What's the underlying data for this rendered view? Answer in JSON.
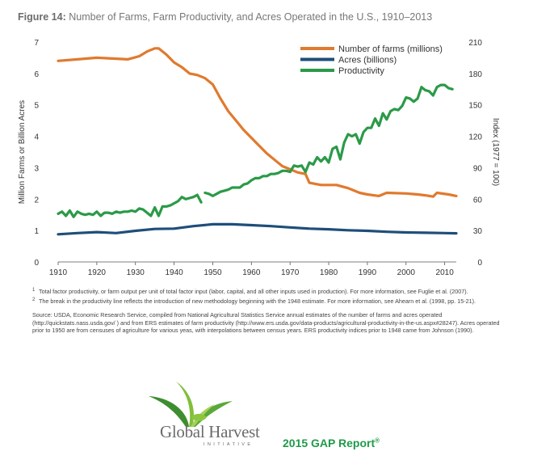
{
  "figure": {
    "label": "Figure 14:",
    "title": "Number of Farms, Farm Productivity, and Acres Operated in the U.S., 1910–2013"
  },
  "chart_data": {
    "type": "line",
    "xlim": [
      1910,
      2013
    ],
    "x_ticks": [
      1910,
      1920,
      1930,
      1940,
      1950,
      1960,
      1970,
      1980,
      1990,
      2000,
      2010
    ],
    "y_left": {
      "label": "Million Farms or Billion Acres",
      "ylim": [
        0,
        7
      ],
      "ticks": [
        0,
        1,
        2,
        3,
        4,
        5,
        6,
        7
      ]
    },
    "y_right": {
      "label": "Index (1977 = 100)",
      "ylim": [
        0,
        210
      ],
      "ticks": [
        0,
        30,
        60,
        90,
        120,
        150,
        180,
        210
      ]
    },
    "legend_position": "top-right",
    "grid": false,
    "series": [
      {
        "name": "Number of farms (millions)",
        "color": "#e07a2e",
        "axis": "left",
        "points": [
          [
            1910,
            6.4
          ],
          [
            1915,
            6.45
          ],
          [
            1920,
            6.5
          ],
          [
            1925,
            6.47
          ],
          [
            1928,
            6.45
          ],
          [
            1931,
            6.55
          ],
          [
            1933,
            6.7
          ],
          [
            1935,
            6.8
          ],
          [
            1936,
            6.8
          ],
          [
            1938,
            6.6
          ],
          [
            1940,
            6.35
          ],
          [
            1942,
            6.2
          ],
          [
            1944,
            6.0
          ],
          [
            1946,
            5.95
          ],
          [
            1948,
            5.85
          ],
          [
            1950,
            5.65
          ],
          [
            1952,
            5.2
          ],
          [
            1954,
            4.8
          ],
          [
            1956,
            4.5
          ],
          [
            1958,
            4.2
          ],
          [
            1960,
            3.95
          ],
          [
            1962,
            3.7
          ],
          [
            1964,
            3.45
          ],
          [
            1966,
            3.25
          ],
          [
            1968,
            3.05
          ],
          [
            1970,
            2.95
          ],
          [
            1972,
            2.85
          ],
          [
            1974,
            2.8
          ],
          [
            1975,
            2.52
          ],
          [
            1978,
            2.45
          ],
          [
            1982,
            2.45
          ],
          [
            1985,
            2.35
          ],
          [
            1988,
            2.2
          ],
          [
            1990,
            2.15
          ],
          [
            1993,
            2.1
          ],
          [
            1995,
            2.2
          ],
          [
            2000,
            2.18
          ],
          [
            2003,
            2.15
          ],
          [
            2005,
            2.12
          ],
          [
            2007,
            2.08
          ],
          [
            2008,
            2.2
          ],
          [
            2011,
            2.15
          ],
          [
            2013,
            2.1
          ]
        ]
      },
      {
        "name": "Acres (billions)",
        "color": "#1f4e79",
        "axis": "left",
        "points": [
          [
            1910,
            0.88
          ],
          [
            1915,
            0.92
          ],
          [
            1920,
            0.95
          ],
          [
            1925,
            0.92
          ],
          [
            1930,
            0.99
          ],
          [
            1935,
            1.05
          ],
          [
            1940,
            1.06
          ],
          [
            1945,
            1.14
          ],
          [
            1950,
            1.2
          ],
          [
            1955,
            1.2
          ],
          [
            1960,
            1.17
          ],
          [
            1965,
            1.14
          ],
          [
            1970,
            1.1
          ],
          [
            1975,
            1.06
          ],
          [
            1980,
            1.04
          ],
          [
            1985,
            1.01
          ],
          [
            1990,
            0.99
          ],
          [
            1995,
            0.96
          ],
          [
            2000,
            0.94
          ],
          [
            2005,
            0.93
          ],
          [
            2010,
            0.92
          ],
          [
            2013,
            0.91
          ]
        ]
      },
      {
        "name": "Productivity",
        "color": "#2b9a48",
        "axis": "right",
        "segments": [
          [
            [
              1910,
              46
            ],
            [
              1911,
              48
            ],
            [
              1912,
              44
            ],
            [
              1913,
              49
            ],
            [
              1914,
              43
            ],
            [
              1915,
              48
            ],
            [
              1916,
              46
            ],
            [
              1917,
              45
            ],
            [
              1918,
              46
            ],
            [
              1919,
              45
            ],
            [
              1920,
              48
            ],
            [
              1921,
              44
            ],
            [
              1922,
              47
            ],
            [
              1923,
              47
            ],
            [
              1924,
              46
            ],
            [
              1925,
              48
            ],
            [
              1926,
              47
            ],
            [
              1927,
              48
            ],
            [
              1928,
              48
            ],
            [
              1929,
              49
            ],
            [
              1930,
              48
            ],
            [
              1931,
              51
            ],
            [
              1932,
              50
            ],
            [
              1933,
              47
            ],
            [
              1934,
              44
            ],
            [
              1935,
              52
            ],
            [
              1936,
              44
            ],
            [
              1937,
              53
            ],
            [
              1938,
              53
            ],
            [
              1939,
              54
            ],
            [
              1940,
              56
            ],
            [
              1941,
              58
            ],
            [
              1942,
              62
            ],
            [
              1943,
              60
            ],
            [
              1944,
              61
            ],
            [
              1945,
              62
            ],
            [
              1946,
              64
            ],
            [
              1947,
              57
            ]
          ],
          [
            [
              1948,
              66
            ],
            [
              1949,
              65
            ],
            [
              1950,
              63
            ],
            [
              1951,
              65
            ],
            [
              1952,
              67
            ],
            [
              1953,
              68
            ],
            [
              1954,
              69
            ],
            [
              1955,
              71
            ],
            [
              1956,
              71
            ],
            [
              1957,
              71
            ],
            [
              1958,
              74
            ],
            [
              1959,
              75
            ],
            [
              1960,
              78
            ],
            [
              1961,
              80
            ],
            [
              1962,
              80
            ],
            [
              1963,
              82
            ],
            [
              1964,
              82
            ],
            [
              1965,
              84
            ],
            [
              1966,
              84
            ],
            [
              1967,
              85
            ],
            [
              1968,
              87
            ],
            [
              1969,
              87
            ],
            [
              1970,
              86
            ],
            [
              1971,
              92
            ],
            [
              1972,
              91
            ],
            [
              1973,
              92
            ],
            [
              1974,
              86
            ],
            [
              1975,
              95
            ],
            [
              1976,
              93
            ],
            [
              1977,
              100
            ],
            [
              1978,
              96
            ],
            [
              1979,
              100
            ],
            [
              1980,
              95
            ],
            [
              1981,
              108
            ],
            [
              1982,
              110
            ],
            [
              1983,
              98
            ],
            [
              1984,
              114
            ],
            [
              1985,
              122
            ],
            [
              1986,
              120
            ],
            [
              1987,
              122
            ],
            [
              1988,
              113
            ],
            [
              1989,
              124
            ],
            [
              1990,
              128
            ],
            [
              1991,
              128
            ],
            [
              1992,
              137
            ],
            [
              1993,
              130
            ],
            [
              1994,
              142
            ],
            [
              1995,
              136
            ],
            [
              1996,
              144
            ],
            [
              1997,
              146
            ],
            [
              1998,
              145
            ],
            [
              1999,
              149
            ],
            [
              2000,
              157
            ],
            [
              2001,
              156
            ],
            [
              2002,
              153
            ],
            [
              2003,
              156
            ],
            [
              2004,
              167
            ],
            [
              2005,
              164
            ],
            [
              2006,
              163
            ],
            [
              2007,
              159
            ],
            [
              2008,
              167
            ],
            [
              2009,
              169
            ],
            [
              2010,
              169
            ],
            [
              2011,
              166
            ],
            [
              2012,
              165
            ]
          ]
        ]
      }
    ]
  },
  "footnotes": [
    {
      "num": "1",
      "text": "Total factor productivity, or farm output per unit of total factor input (labor, capital, and all other inputs used in production). For more information, see Fuglie et al. (2007)."
    },
    {
      "num": "2",
      "text": "The break in the productivity line reflects the introduction of new methodology beginning with the 1948 estimate. For more information, see Ahearn et al. (1998, pp. 15-21)."
    }
  ],
  "source": "Source: USDA, Economic Research Service, compiled from National Agricultural Statistics Service annual estimates of the number of farms and acres operated (http://quickstats.nass.usda.gov/ ) and from ERS estimates of farm productivity (http://www.ers.usda.gov/data-products/agricultural-productivity-in-the-us.aspx#28247). Acres operated prior to 1950 are from censuses of agriculture for various yeas, with interpolations between census years. ERS productivity indices prior to 1948 came from Johnson (1990).",
  "logo": {
    "name": "Global Harvest",
    "sub": "INITIATIVE",
    "colors": {
      "leaf": "#7fbf3a",
      "leaf_dark": "#3e8e2f",
      "text": "#6b6b6b"
    }
  },
  "report_title": "2015 GAP Report",
  "report_mark": "®"
}
